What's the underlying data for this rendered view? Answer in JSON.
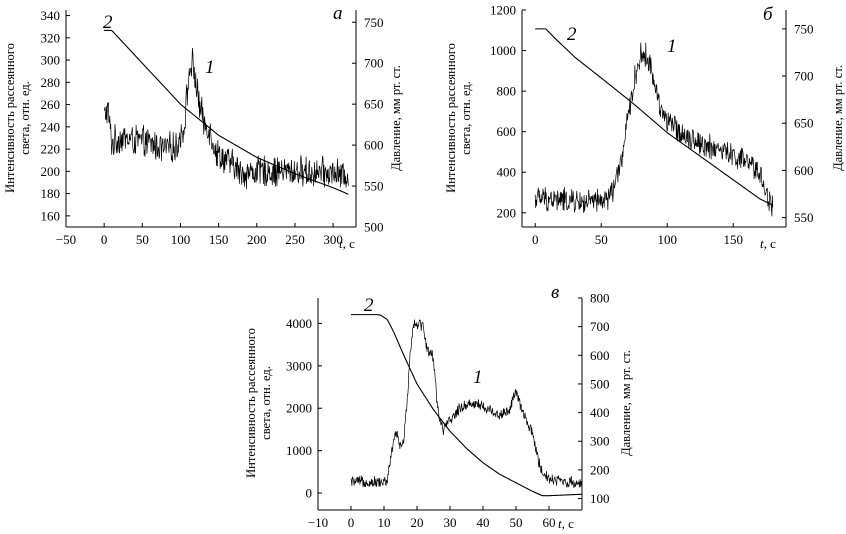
{
  "figure": {
    "t_axis_label": "t",
    "t_axis_unit": ", с"
  },
  "chart_data": [
    {
      "type": "line",
      "panel_letter": "а",
      "ylabel_left": "Интенсивность рассеянного света, отн. ед.",
      "ylabel_right": "Давление, мм рт. ст.",
      "xlabel": "t, с",
      "xlim": [
        -50,
        330
      ],
      "x_ticks": [
        -50,
        0,
        50,
        100,
        150,
        200,
        250,
        300
      ],
      "ylim_left": [
        150,
        345
      ],
      "y_ticks_left": [
        160,
        180,
        200,
        220,
        240,
        260,
        280,
        300,
        320,
        340
      ],
      "ylim_right": [
        500,
        765
      ],
      "y_ticks_right": [
        500,
        550,
        600,
        650,
        700,
        750
      ],
      "series": [
        {
          "name": "1",
          "axis": "left",
          "style": "noisy",
          "noise_amplitude": 16,
          "x": [
            0,
            5,
            10,
            20,
            40,
            60,
            80,
            95,
            105,
            110,
            115,
            120,
            125,
            130,
            135,
            140,
            145,
            150,
            160,
            170,
            180,
            200,
            250,
            300,
            320
          ],
          "values": [
            250,
            255,
            225,
            230,
            228,
            225,
            220,
            222,
            240,
            280,
            300,
            280,
            260,
            245,
            240,
            235,
            220,
            215,
            210,
            205,
            198,
            200,
            200,
            198,
            195
          ]
        },
        {
          "name": "2",
          "axis": "right",
          "style": "smooth",
          "x": [
            0,
            10,
            20,
            50,
            100,
            150,
            200,
            250,
            300,
            320
          ],
          "values": [
            740,
            740,
            730,
            700,
            650,
            612,
            585,
            565,
            548,
            540
          ]
        }
      ]
    },
    {
      "type": "line",
      "panel_letter": "б",
      "ylabel_left": "Интенсивность рассеянного света, отн. ед.",
      "ylabel_right": "Давление, мм рт. ст.",
      "xlabel": "t, с",
      "xlim": [
        -10,
        190
      ],
      "x_ticks": [
        0,
        50,
        100,
        150
      ],
      "ylim_left": [
        130,
        1200
      ],
      "y_ticks_left": [
        200,
        400,
        600,
        800,
        1000,
        1200
      ],
      "ylim_right": [
        540,
        770
      ],
      "y_ticks_right": [
        550,
        600,
        650,
        700,
        750
      ],
      "series": [
        {
          "name": "1",
          "axis": "left",
          "style": "noisy",
          "noise_amplitude": 70,
          "x": [
            0,
            10,
            20,
            30,
            40,
            50,
            55,
            60,
            65,
            70,
            75,
            80,
            85,
            90,
            95,
            100,
            110,
            120,
            130,
            140,
            150,
            160,
            170,
            175,
            180
          ],
          "values": [
            270,
            268,
            262,
            255,
            250,
            255,
            270,
            330,
            450,
            650,
            850,
            980,
            970,
            850,
            720,
            650,
            600,
            560,
            530,
            510,
            480,
            450,
            400,
            300,
            220
          ]
        },
        {
          "name": "2",
          "axis": "right",
          "style": "smooth",
          "x": [
            0,
            8,
            15,
            30,
            50,
            75,
            100,
            125,
            150,
            170,
            180
          ],
          "values": [
            750,
            750,
            740,
            720,
            698,
            670,
            640,
            615,
            590,
            570,
            563
          ]
        }
      ]
    },
    {
      "type": "line",
      "panel_letter": "в",
      "ylabel_left": "Интенсивность рассеянного света, отн. ед.",
      "ylabel_right": "Давление, мм рт. ст.",
      "xlabel": "t, с",
      "xlim": [
        -10,
        70
      ],
      "x_ticks": [
        -10,
        0,
        10,
        20,
        30,
        40,
        50,
        60
      ],
      "ylim_left": [
        -400,
        4600
      ],
      "y_ticks_left": [
        0,
        1000,
        2000,
        3000,
        4000
      ],
      "ylim_right": [
        60,
        800
      ],
      "y_ticks_right": [
        100,
        200,
        300,
        400,
        500,
        600,
        700,
        800
      ],
      "series": [
        {
          "name": "1",
          "axis": "left",
          "style": "noisy",
          "noise_amplitude": 160,
          "x": [
            0,
            5,
            10,
            11,
            12,
            13,
            14,
            15,
            16,
            17,
            18,
            19,
            20,
            21,
            22,
            23,
            24,
            25,
            26,
            27,
            28,
            30,
            33,
            35,
            38,
            40,
            42,
            45,
            48,
            50,
            52,
            55,
            57,
            58,
            60,
            65,
            70
          ],
          "values": [
            260,
            260,
            255,
            300,
            800,
            1300,
            1350,
            1100,
            1200,
            2200,
            3400,
            4000,
            4000,
            4000,
            3900,
            3400,
            3300,
            3200,
            2200,
            1700,
            1500,
            1700,
            2000,
            2100,
            2100,
            2050,
            1950,
            1850,
            1950,
            2400,
            1900,
            1400,
            700,
            500,
            350,
            260,
            230
          ]
        },
        {
          "name": "2",
          "axis": "right",
          "style": "smooth",
          "x": [
            0,
            8,
            9,
            11,
            13,
            16,
            20,
            25,
            30,
            35,
            40,
            45,
            50,
            55,
            58,
            60,
            70
          ],
          "values": [
            742,
            742,
            740,
            725,
            680,
            600,
            500,
            410,
            335,
            275,
            225,
            185,
            155,
            125,
            110,
            110,
            115
          ]
        }
      ]
    }
  ]
}
